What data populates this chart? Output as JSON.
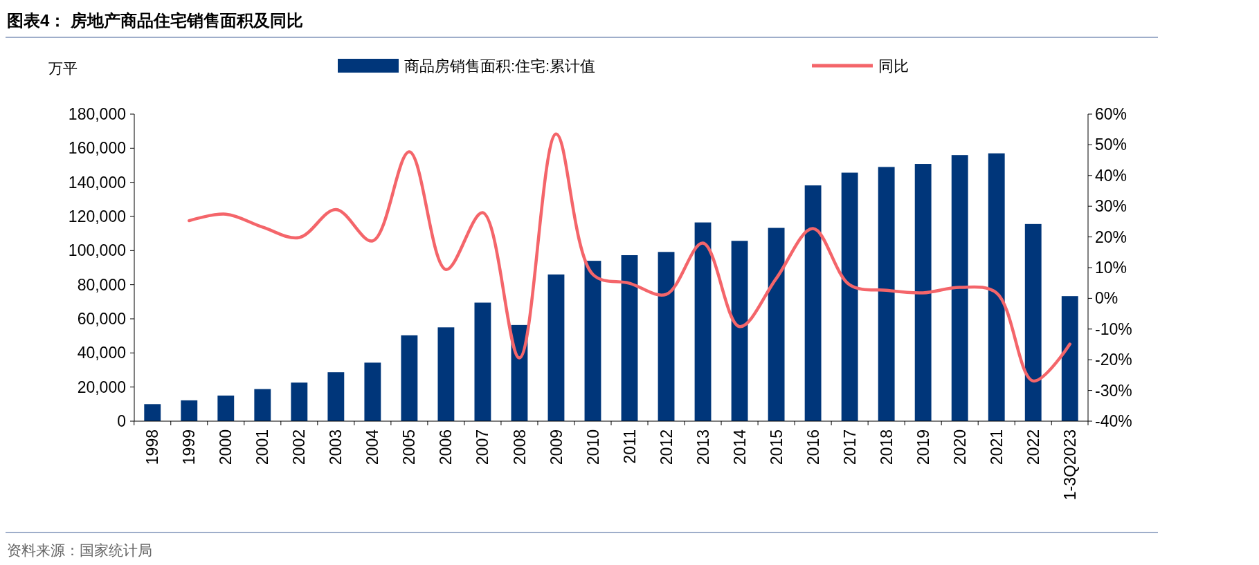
{
  "chart_data": {
    "type": "bar",
    "title": "图表4：  房地产商品住宅销售面积及同比",
    "ylabel": "万平",
    "categories": [
      "1998",
      "1999",
      "2000",
      "2001",
      "2002",
      "2003",
      "2004",
      "2005",
      "2006",
      "2007",
      "2008",
      "2009",
      "2010",
      "2011",
      "2012",
      "2013",
      "2014",
      "2015",
      "2016",
      "2017",
      "2018",
      "2019",
      "2020",
      "2021",
      "2022",
      "1-3Q2023"
    ],
    "series": [
      {
        "name": "商品房销售面积:住宅:累计值",
        "color": "#00367a",
        "values": [
          10000,
          12200,
          15000,
          18800,
          22600,
          28700,
          34300,
          50300,
          55000,
          69500,
          56400,
          86000,
          94000,
          97300,
          99200,
          116500,
          105700,
          113300,
          138200,
          145700,
          149000,
          150800,
          156000,
          157000,
          115600,
          73300
        ]
      },
      {
        "name": "同比",
        "type": "line",
        "axis": "y2",
        "color": "#f4656a",
        "values": [
          null,
          25.3,
          27.4,
          23.2,
          19.8,
          28.9,
          18.7,
          47.7,
          9.4,
          27.9,
          -19.4,
          53.5,
          7.8,
          4.9,
          1.3,
          18,
          -9.2,
          6.5,
          22.7,
          4.4,
          2.6,
          1.8,
          3.6,
          1.8,
          -26.9,
          -14.9
        ]
      }
    ],
    "ylim": [
      0,
      180000
    ],
    "yticks": [
      {
        "value": 0,
        "label": "0"
      },
      {
        "value": 20000,
        "label": "20,000"
      },
      {
        "value": 40000,
        "label": "40,000"
      },
      {
        "value": 60000,
        "label": "60,000"
      },
      {
        "value": 80000,
        "label": "80,000"
      },
      {
        "value": 100000,
        "label": "100,000"
      },
      {
        "value": 120000,
        "label": "120,000"
      },
      {
        "value": 140000,
        "label": "140,000"
      },
      {
        "value": 160000,
        "label": "160,000"
      },
      {
        "value": 180000,
        "label": "180,000"
      }
    ],
    "y2lim": [
      -40,
      60
    ],
    "y2ticks": [
      {
        "value": -40,
        "label": "-40%"
      },
      {
        "value": -30,
        "label": "-30%"
      },
      {
        "value": -20,
        "label": "-20%"
      },
      {
        "value": -10,
        "label": "-10%"
      },
      {
        "value": 0,
        "label": "0%"
      },
      {
        "value": 10,
        "label": "10%"
      },
      {
        "value": 20,
        "label": "20%"
      },
      {
        "value": 30,
        "label": "30%"
      },
      {
        "value": 40,
        "label": "40%"
      },
      {
        "value": 50,
        "label": "50%"
      },
      {
        "value": 60,
        "label": "60%"
      }
    ],
    "grid": false,
    "legend": "top",
    "annotations": [
      "资料来源：国家统计局"
    ]
  }
}
